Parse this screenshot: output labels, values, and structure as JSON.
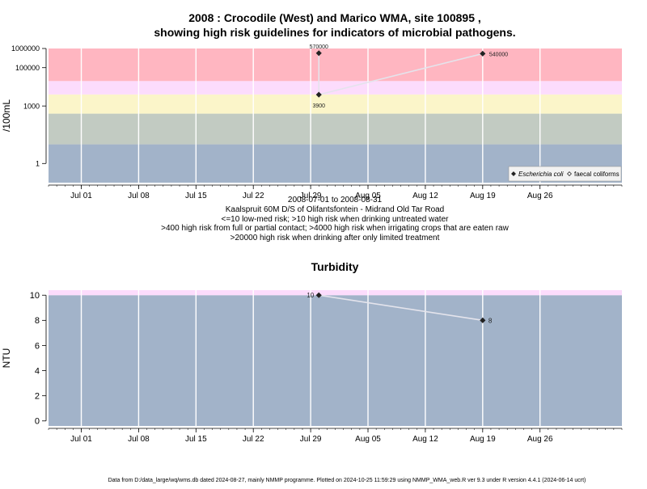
{
  "header": {
    "title_line1": "2008 : Crocodile (West) and Marico WMA, site 100895 ,",
    "title_line2": "showing high risk guidelines for indicators of microbial pathogens."
  },
  "footer": "Data from D:/data_large/wq/wms.db dated 2024-08-27, mainly NMMP programme. Plotted on 2024-10-25 11:59:29 using NMMP_WMA_web.R ver 9.3 under R version 4.4.1 (2024-06-14 ucrt)",
  "chart_data": [
    {
      "type": "line",
      "title": "",
      "ylabel": "/100mL",
      "y_scale": "log10",
      "ylim": [
        0.1,
        1000000
      ],
      "xlim": [
        "2008-06-27",
        "2008-09-05"
      ],
      "y_ticks": [
        1,
        1000,
        100000,
        1000000
      ],
      "y_tick_labels": [
        "1",
        "1000",
        "100000",
        "1000000"
      ],
      "x_ticks": [
        "2008-07-01",
        "2008-07-08",
        "2008-07-15",
        "2008-07-22",
        "2008-07-29",
        "2008-08-05",
        "2008-08-12",
        "2008-08-19",
        "2008-08-26"
      ],
      "x_tick_labels": [
        "Jul 01",
        "Jul 08",
        "Jul 15",
        "Jul 22",
        "Jul 29",
        "Aug 05",
        "Aug 12",
        "Aug 19",
        "Aug 26"
      ],
      "risk_bands": [
        {
          "from": 0.1,
          "to": 10,
          "color": "#a2b3c9"
        },
        {
          "from": 10,
          "to": 400,
          "color": "#c2cbc2"
        },
        {
          "from": 400,
          "to": 4000,
          "color": "#fbf5c9"
        },
        {
          "from": 4000,
          "to": 20000,
          "color": "#fcdcfc"
        },
        {
          "from": 20000,
          "to": 1000000,
          "color": "#ffb6c1"
        }
      ],
      "series": [
        {
          "name": "Escherichia coli",
          "marker": "filled-diamond",
          "points": [
            {
              "x": "2008-07-30",
              "y": 570000,
              "label": "570000"
            },
            {
              "x": "2008-07-30",
              "y": 3900,
              "label": "3900"
            },
            {
              "x": "2008-08-19",
              "y": 540000,
              "label": "540000"
            }
          ]
        },
        {
          "name": "faecal coliforms",
          "marker": "open-diamond",
          "points": []
        }
      ],
      "legend_position": "bottom-right",
      "annotations": [
        "2008-07-01 to 2008-08-31",
        "Kaalspruit 60M D/S of Olifantsfontein - Midrand Old Tar Road",
        "<=10 low-med risk; >10 high risk when drinking untreated water",
        ">400 high risk from full or partial contact; >4000 high risk when irrigating crops that are eaten raw",
        ">20000 high risk when drinking after only limited treatment"
      ]
    },
    {
      "type": "line",
      "title": "Turbidity",
      "ylabel": "NTU",
      "ylim": [
        -0.4,
        10.4
      ],
      "xlim": [
        "2008-06-27",
        "2008-09-05"
      ],
      "y_ticks": [
        0,
        2,
        4,
        6,
        8,
        10
      ],
      "y_tick_labels": [
        "0",
        "2",
        "4",
        "6",
        "8",
        "10"
      ],
      "x_ticks": [
        "2008-07-01",
        "2008-07-08",
        "2008-07-15",
        "2008-07-22",
        "2008-07-29",
        "2008-08-05",
        "2008-08-12",
        "2008-08-19",
        "2008-08-26"
      ],
      "x_tick_labels": [
        "Jul 01",
        "Jul 08",
        "Jul 15",
        "Jul 22",
        "Jul 29",
        "Aug 05",
        "Aug 12",
        "Aug 19",
        "Aug 26"
      ],
      "risk_bands": [
        {
          "from": -0.4,
          "to": 10,
          "color": "#a2b3c9"
        },
        {
          "from": 10,
          "to": 10.4,
          "color": "#fcdcfc"
        }
      ],
      "series": [
        {
          "marker": "filled-diamond",
          "points": [
            {
              "x": "2008-07-30",
              "y": 10,
              "label": "10"
            },
            {
              "x": "2008-08-19",
              "y": 8,
              "label": "8"
            }
          ]
        }
      ]
    }
  ]
}
